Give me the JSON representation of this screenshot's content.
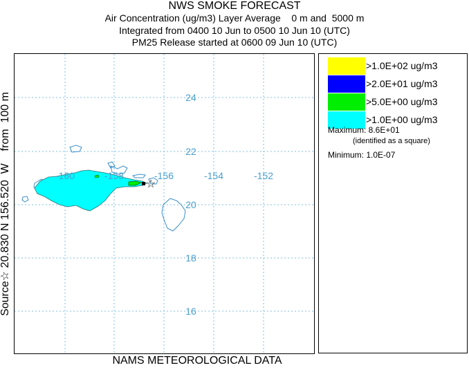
{
  "header": {
    "title": "NWS SMOKE FORECAST",
    "line2": "Air Concentration (ug/m3) Layer Average    0 m and  5000 m",
    "line3": "Integrated from 0400 10 Jun to 0500 10 Jun 10 (UTC)",
    "line4": "PM25 Release started at 0600 09 Jun 10 (UTC)"
  },
  "side_label": "Source☆ 20.830 N 156.520  W    from  100 m",
  "bottom_label": "NAMS METEOROLOGICAL DATA",
  "map": {
    "lon_labels": [
      "-160",
      "-158",
      "-156",
      "-154",
      "-152"
    ],
    "lat_labels": [
      "24",
      "22",
      "20",
      "18",
      "16"
    ],
    "label_color": "#4a9fd0",
    "grid_color": "#7fbfe6",
    "source_symbol": "☆"
  },
  "legend": {
    "items": [
      {
        "label": ">1.0E+02 ug/m3",
        "color": "#ffff00"
      },
      {
        "label": ">2.0E+01 ug/m3",
        "color": "#0000ff"
      },
      {
        "label": ">5.0E+00 ug/m3",
        "color": "#00ee00"
      },
      {
        "label": ">1.0E+00 ug/m3",
        "color": "#00ffff"
      }
    ],
    "maximum": "Maximum: 8.6E+01",
    "maximum_note": "(identified as a square)",
    "minimum": "Minimum: 1.0E-07"
  }
}
